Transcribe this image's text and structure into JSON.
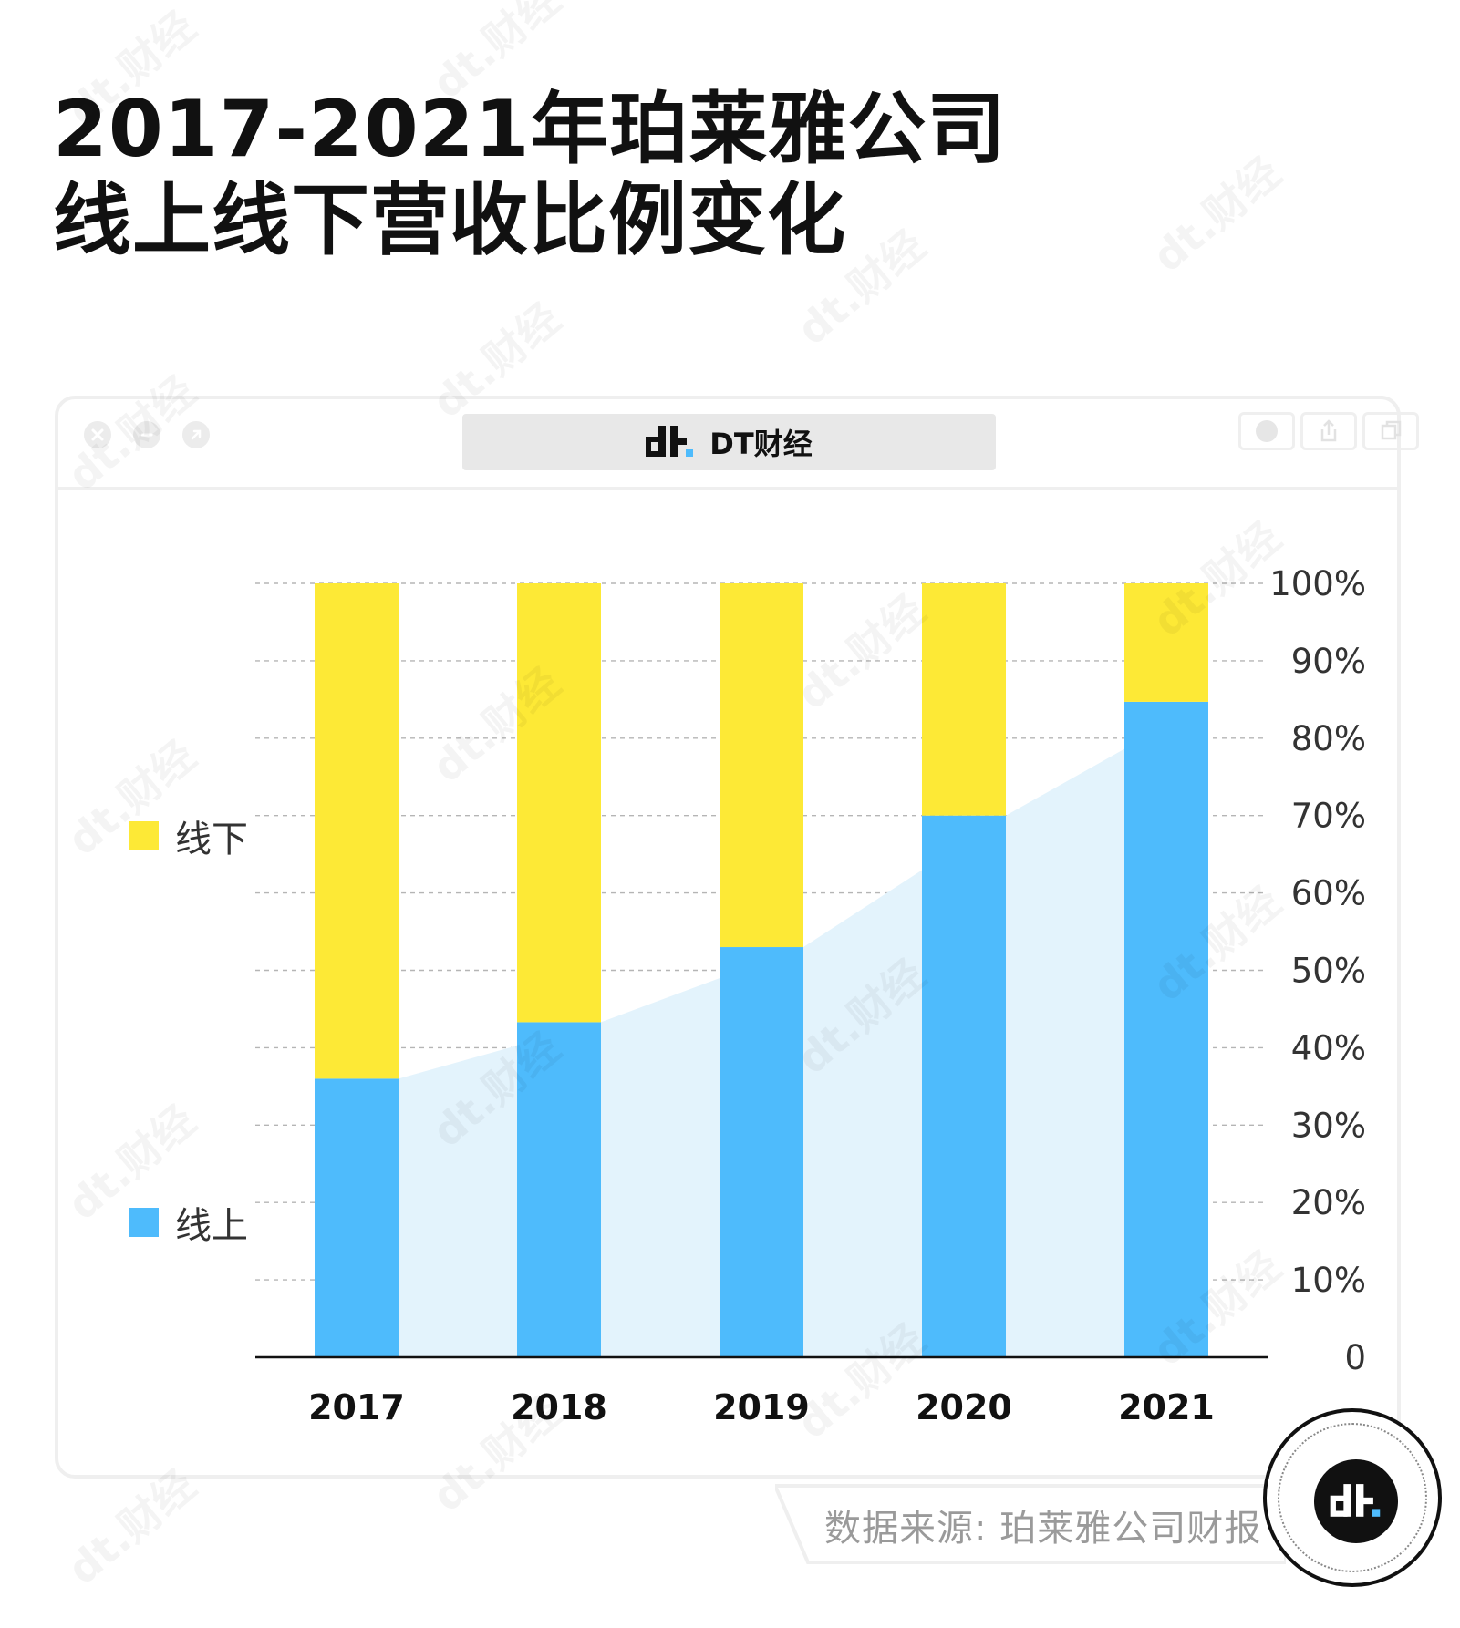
{
  "title": {
    "line1": "2017-2021年珀莱雅公司",
    "line2": "线上线下营收比例变化"
  },
  "window": {
    "brand_name": "DT财经"
  },
  "legend": [
    {
      "label": "线下",
      "color": "#FDE936"
    },
    {
      "label": "线上",
      "color": "#4EBBFC"
    }
  ],
  "source": "数据来源: 珀莱雅公司财报",
  "watermark_text": "dt.财经",
  "colors": {
    "offline": "#FDE936",
    "online": "#4EBBFC",
    "trend_area": "#E3F3FC",
    "grid": "#b5b5b5",
    "axis": "#111111"
  },
  "chart_data": {
    "type": "bar",
    "stacked": true,
    "categories": [
      "2017",
      "2018",
      "2019",
      "2020",
      "2021"
    ],
    "series": [
      {
        "name": "线上",
        "values": [
          36,
          43.3,
          53,
          70,
          84.7
        ]
      },
      {
        "name": "线下",
        "values": [
          64,
          56.7,
          47,
          30,
          15.3
        ]
      }
    ],
    "ylim": [
      0,
      100
    ],
    "yticks": [
      0,
      10,
      20,
      30,
      40,
      50,
      60,
      70,
      80,
      90,
      100
    ],
    "ytick_labels": [
      "0",
      "10%",
      "20%",
      "30%",
      "40%",
      "50%",
      "60%",
      "70%",
      "80%",
      "90%",
      "100%"
    ],
    "y_axis_side": "right",
    "grid": true,
    "legend_position": "left",
    "title": "2017-2021年珀莱雅公司线上线下营收比例变化",
    "xlabel": "",
    "ylabel": ""
  }
}
